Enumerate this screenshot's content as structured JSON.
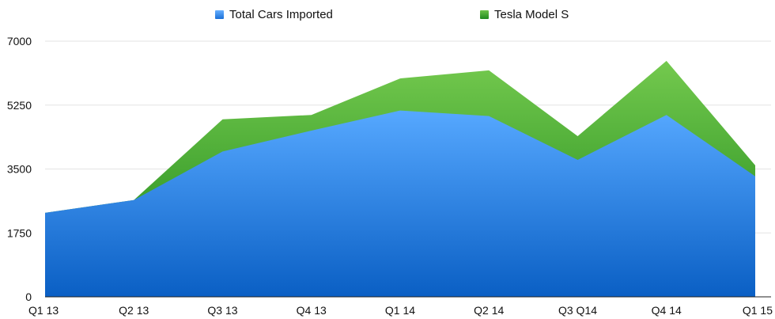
{
  "chart_data": {
    "type": "area",
    "stacked": true,
    "categories": [
      "Q1 13",
      "Q2 13",
      "Q3 13",
      "Q4 13",
      "Q1 14",
      "Q2 14",
      "Q3 Q14",
      "Q4 14",
      "Q1 15"
    ],
    "series": [
      {
        "name": "Total Cars Imported",
        "color": "#3d8ff0",
        "values": [
          2300,
          2650,
          3980,
          4550,
          5100,
          4950,
          3750,
          4980,
          3300
        ]
      },
      {
        "name": "Tesla Model S",
        "color": "#3aa83a",
        "values": [
          0,
          0,
          880,
          430,
          880,
          1250,
          650,
          1480,
          300
        ]
      }
    ],
    "yticks": [
      0,
      1750,
      3500,
      5250,
      7000
    ],
    "ylim": [
      0,
      7000
    ],
    "grid": true,
    "legend": "top"
  }
}
